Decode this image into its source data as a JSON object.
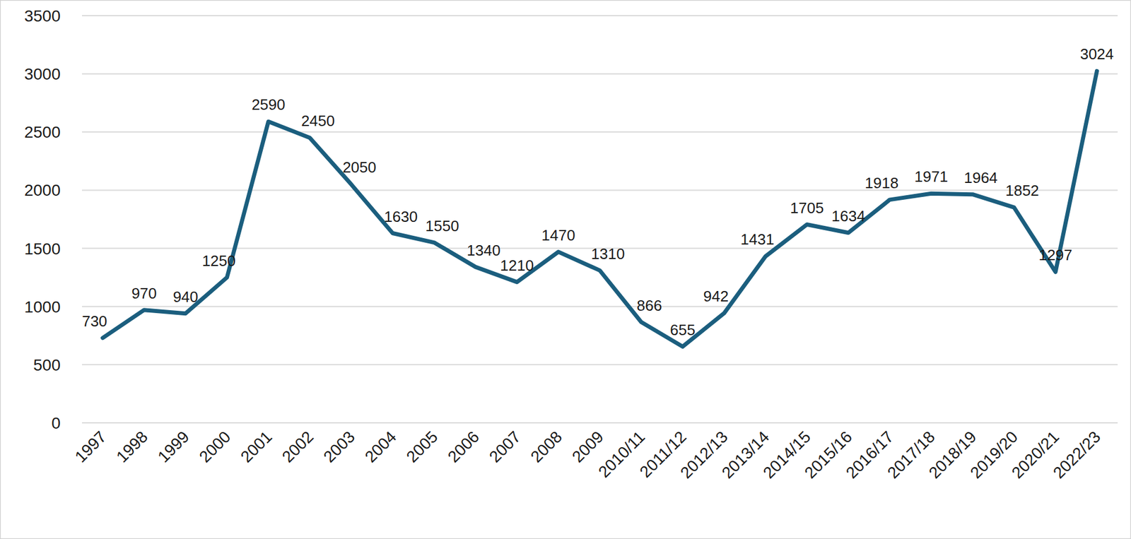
{
  "chart_data": {
    "type": "line",
    "categories": [
      "1997",
      "1998",
      "1999",
      "2000",
      "2001",
      "2002",
      "2003",
      "2004",
      "2005",
      "2006",
      "2007",
      "2008",
      "2009",
      "2010/11",
      "2011/12",
      "2012/13",
      "2013/14",
      "2014/15",
      "2015/16",
      "2016/17",
      "2017/18",
      "2018/19",
      "2019/20",
      "2020/21",
      "2022/23"
    ],
    "values": [
      730,
      970,
      940,
      1250,
      2590,
      2450,
      2050,
      1630,
      1550,
      1340,
      1210,
      1470,
      1310,
      866,
      655,
      942,
      1431,
      1705,
      1634,
      1918,
      1971,
      1964,
      1852,
      1297,
      3024
    ],
    "color": "#1b5e7e",
    "ylim": [
      0,
      3500
    ],
    "yticks": [
      0,
      500,
      1000,
      1500,
      2000,
      2500,
      3000,
      3500
    ],
    "grid": true,
    "data_labels": true
  }
}
